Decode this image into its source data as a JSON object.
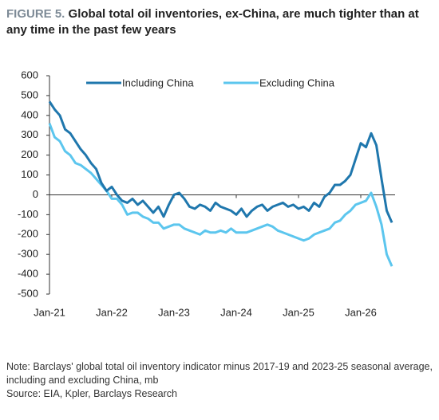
{
  "chart_data": {
    "type": "line",
    "title_label": "FIGURE 5.",
    "title": "Global total oil inventories, ex-China, are much tighter than at any time in the past few years",
    "categories": [
      "Jan-21",
      null,
      null,
      null,
      null,
      null,
      null,
      null,
      null,
      null,
      null,
      null,
      "Jan-22",
      null,
      null,
      null,
      null,
      null,
      null,
      null,
      null,
      null,
      null,
      null,
      "Jan-23",
      null,
      null,
      null,
      null,
      null,
      null,
      null,
      null,
      null,
      null,
      null,
      "Jan-24",
      null,
      null,
      null,
      null,
      null,
      null,
      null,
      null,
      null,
      null,
      null,
      "Jan-25",
      null,
      null,
      null,
      null,
      null,
      null,
      null,
      null,
      null,
      null,
      null,
      "Jan-26",
      null,
      null,
      null,
      null,
      null,
      null
    ],
    "series": [
      {
        "name": "Including China",
        "color": "#1f77ad",
        "values": [
          470,
          430,
          400,
          330,
          310,
          270,
          230,
          200,
          160,
          130,
          60,
          20,
          40,
          0,
          -30,
          -40,
          -20,
          -50,
          -30,
          -60,
          -90,
          -60,
          -110,
          -50,
          0,
          10,
          -20,
          -60,
          -70,
          -50,
          -60,
          -80,
          -40,
          -60,
          -70,
          -80,
          -100,
          -70,
          -110,
          -80,
          -60,
          -50,
          -80,
          -60,
          -50,
          -40,
          -60,
          -50,
          -70,
          -60,
          -80,
          -40,
          -60,
          -10,
          10,
          50,
          50,
          70,
          100,
          180,
          260,
          240,
          310,
          250,
          80,
          -80,
          -140
        ]
      },
      {
        "name": "Excluding China",
        "color": "#5cc6ee",
        "values": [
          360,
          290,
          270,
          220,
          200,
          160,
          150,
          130,
          110,
          80,
          50,
          20,
          -20,
          -20,
          -50,
          -100,
          -90,
          -90,
          -110,
          -120,
          -140,
          -140,
          -170,
          -160,
          -150,
          -150,
          -170,
          -180,
          -190,
          -200,
          -180,
          -190,
          -190,
          -180,
          -190,
          -170,
          -190,
          -190,
          -190,
          -180,
          -170,
          -160,
          -150,
          -160,
          -180,
          -190,
          -200,
          -210,
          -220,
          -230,
          -220,
          -200,
          -190,
          -180,
          -170,
          -140,
          -130,
          -100,
          -80,
          -50,
          -40,
          -30,
          10,
          -60,
          -150,
          -300,
          -360
        ]
      }
    ],
    "ylim": [
      -500,
      600
    ],
    "yticks": [
      -500,
      -400,
      -300,
      -200,
      -100,
      0,
      100,
      200,
      300,
      400,
      500,
      600
    ],
    "note": "Note: Barclays' global total oil inventory indicator minus 2017-19 and 2023-25 seasonal average, including and excluding China, mb",
    "source": "Source: EIA, Kpler, Barclays Research"
  }
}
